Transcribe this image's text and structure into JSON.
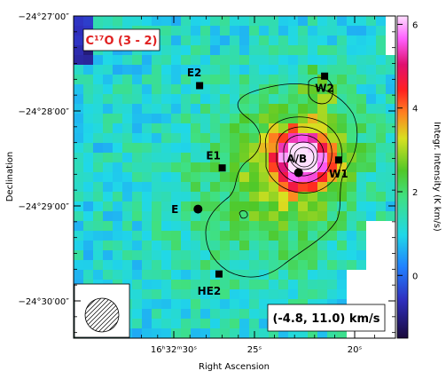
{
  "chart_data": {
    "type": "heatmap",
    "title": "C¹⁷O (3 - 2)",
    "xlabel": "Right Ascension",
    "ylabel": "Declination",
    "colorbar_label": "Integr. Intensity (K km/s)",
    "velocity_range": "(-4.8, 11.0) km/s",
    "colorbar_range": [
      -1.5,
      6.2
    ],
    "colorbar_ticks": [
      {
        "value": 0,
        "label": "0"
      },
      {
        "value": 2,
        "label": "2"
      },
      {
        "value": 4,
        "label": "4"
      },
      {
        "value": 6,
        "label": "6"
      }
    ],
    "x_ticks": [
      {
        "ra_s": 30,
        "label": "16ʰ32ᵐ30ˢ"
      },
      {
        "ra_s": 25,
        "label": "25ˢ"
      },
      {
        "ra_s": 20,
        "label": "20ˢ"
      }
    ],
    "y_ticks": [
      {
        "dec_arcsec": 0,
        "label": "−24°27′00″"
      },
      {
        "dec_arcsec": 60,
        "label": "−24°28′00″"
      },
      {
        "dec_arcsec": 120,
        "label": "−24°29′00″"
      },
      {
        "dec_arcsec": 180,
        "label": "−24°30′00″"
      }
    ],
    "sources": [
      {
        "name": "E2",
        "ra_s": 28.4,
        "dec_arcsec": 44,
        "marker": "square"
      },
      {
        "name": "E1",
        "ra_s": 27.0,
        "dec_arcsec": 96,
        "marker": "square"
      },
      {
        "name": "E",
        "ra_s": 28.5,
        "dec_arcsec": 122,
        "marker": "circle"
      },
      {
        "name": "HE2",
        "ra_s": 27.2,
        "dec_arcsec": 163,
        "marker": "square"
      },
      {
        "name": "W2",
        "ra_s": 21.5,
        "dec_arcsec": 38,
        "marker": "square"
      },
      {
        "name": "W1",
        "ra_s": 20.8,
        "dec_arcsec": 91,
        "marker": "square"
      },
      {
        "name": "A/B",
        "ra_s": 22.8,
        "dec_arcsec": 99,
        "marker": "circle"
      }
    ]
  }
}
